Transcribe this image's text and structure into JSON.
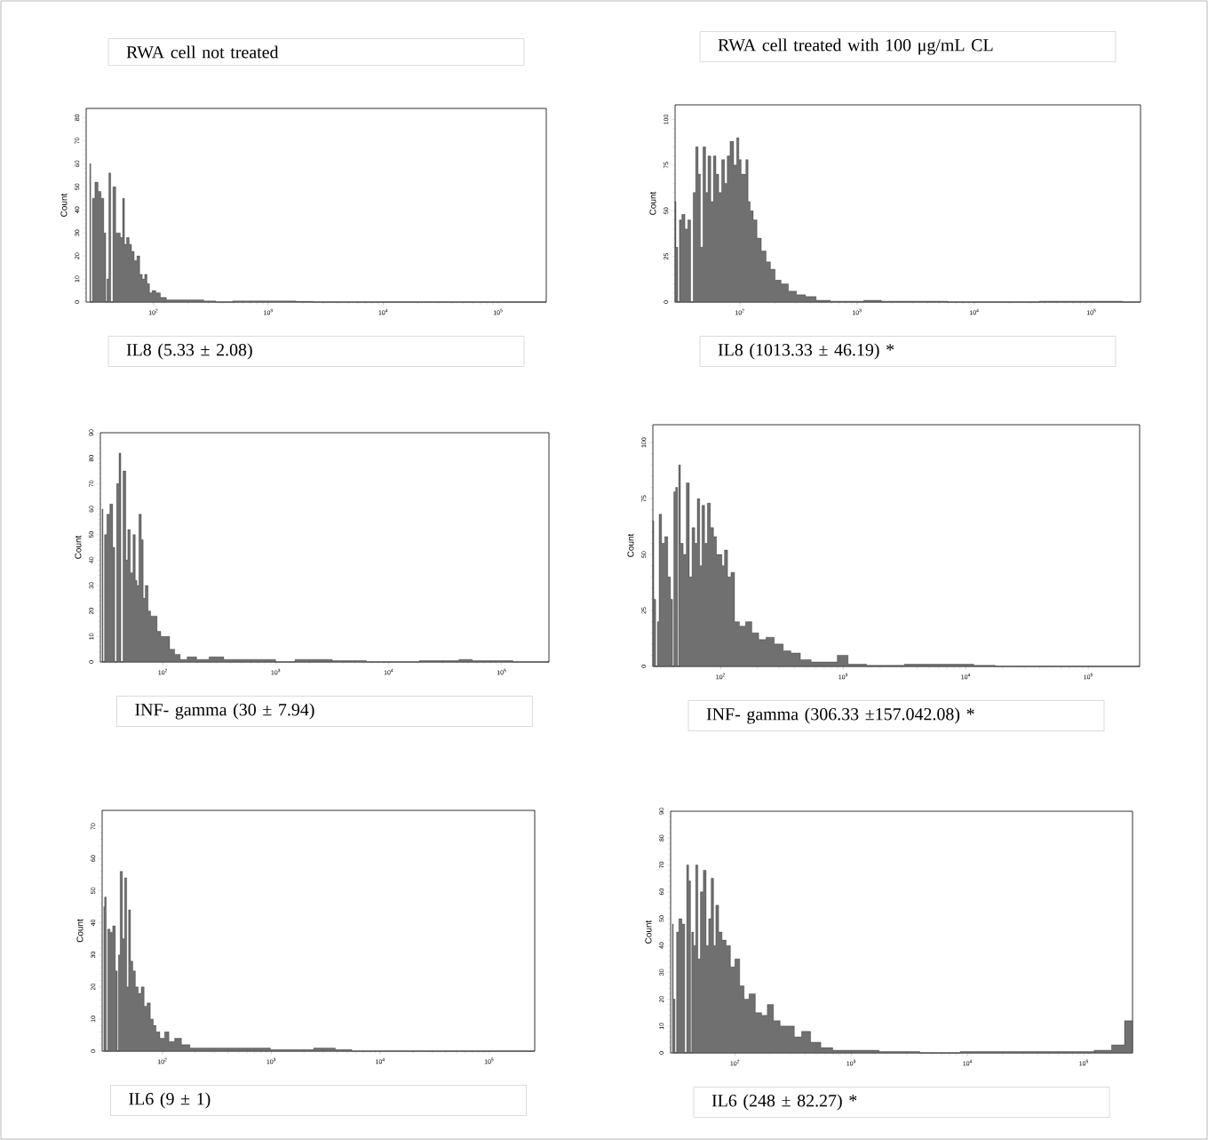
{
  "chart_data": [
    {
      "type": "area",
      "title": "RWA cell not treated",
      "xlabel": "IL8 (5.33 ± 2.08)",
      "ylabel": "Count",
      "log": "x",
      "color": "#707070",
      "x": [
        28,
        29,
        30,
        32,
        34,
        36,
        38,
        39,
        40,
        42,
        43,
        44,
        46,
        48,
        50,
        53,
        55,
        57,
        60,
        63,
        66,
        70,
        74,
        78,
        82,
        86,
        90,
        95,
        100,
        110,
        120,
        140,
        180,
        250,
        300,
        400,
        600,
        1000,
        1500,
        2000,
        3000,
        262144
      ],
      "values": [
        60,
        0,
        45,
        52,
        48,
        45,
        30,
        0,
        10,
        56,
        0,
        null,
        50,
        30,
        30,
        28,
        45,
        25,
        28,
        25,
        22,
        18,
        20,
        12,
        10,
        12,
        8,
        4,
        5,
        4,
        2,
        1,
        1,
        1,
        0.5,
        0,
        0.5,
        0.5,
        0.5,
        0.3,
        0,
        0
      ],
      "xlim": [
        26,
        262144
      ],
      "ylim": [
        0,
        84
      ],
      "xticks": [
        {
          "value": 100,
          "label": "10$^{2}$"
        },
        {
          "value": 1000,
          "label": "10$^{3}$"
        },
        {
          "value": 10000,
          "label": "10$^{4}$"
        },
        {
          "value": 100000,
          "label": "10$^{5}$"
        }
      ],
      "yticks": [
        0,
        10,
        20,
        30,
        40,
        50,
        60,
        70,
        80
      ]
    },
    {
      "type": "area",
      "title": "RWA cell treated with 100 μg/mL CL",
      "xlabel": "IL8 (1013.33 ± 46.19) *",
      "ylabel": "Count",
      "log": "x",
      "color": "#707070",
      "x": [
        28,
        29,
        30,
        31,
        33,
        35,
        37,
        39,
        41,
        43,
        45,
        47,
        50,
        52,
        55,
        58,
        61,
        64,
        68,
        72,
        76,
        80,
        85,
        88,
        92,
        96,
        100,
        105,
        110,
        115,
        120,
        125,
        135,
        145,
        160,
        175,
        190,
        210,
        240,
        280,
        330,
        400,
        500,
        700,
        1000,
        1300,
        2000,
        3500,
        10000,
        130000,
        262144
      ],
      "values": [
        55,
        30,
        0,
        45,
        48,
        40,
        45,
        0,
        60,
        85,
        70,
        30,
        85,
        60,
        80,
        55,
        80,
        70,
        60,
        78,
        65,
        80,
        88,
        null,
        75,
        90,
        78,
        70,
        70,
        78,
        55,
        50,
        45,
        35,
        28,
        22,
        18,
        12,
        10,
        6,
        4,
        3,
        1,
        0.5,
        0.5,
        1,
        0.5,
        0.5,
        0,
        0.5,
        0
      ],
      "xlim": [
        28,
        262144
      ],
      "ylim": [
        0,
        108
      ],
      "xticks": [
        {
          "value": 100,
          "label": "10$^{2}$"
        },
        {
          "value": 1000,
          "label": "10$^{3}$"
        },
        {
          "value": 10000,
          "label": "10$^{4}$"
        },
        {
          "value": 100000,
          "label": "10$^{5}$"
        }
      ],
      "yticks": [
        0,
        25,
        50,
        75,
        100
      ]
    },
    {
      "type": "area",
      "xlabel": "INF- gamma (30 ± 7.94)",
      "ylabel": "Count",
      "log": "x",
      "color": "#707070",
      "x": [
        29,
        30,
        31,
        33,
        35,
        37,
        38,
        40,
        42,
        43,
        44,
        46,
        48,
        50,
        53,
        56,
        58,
        60,
        63,
        66,
        68,
        72,
        76,
        80,
        86,
        92,
        100,
        110,
        120,
        135,
        150,
        180,
        220,
        300,
        400,
        500,
        700,
        900,
        1100,
        2000,
        2500,
        4000,
        10000,
        35000,
        50000,
        60000,
        262144
      ],
      "values": [
        60,
        0,
        50,
        58,
        62,
        45,
        0,
        70,
        82,
        0,
        null,
        75,
        40,
        52,
        35,
        50,
        32,
        30,
        58,
        48,
        25,
        30,
        20,
        18,
        18,
        12,
        10,
        10,
        5,
        3,
        1,
        2,
        1,
        2,
        1,
        1,
        1,
        1,
        0,
        1,
        1,
        0.5,
        0,
        0.5,
        1,
        0.5,
        0
      ],
      "xlim": [
        28,
        262144
      ],
      "ylim": [
        0,
        90
      ],
      "xticks": [
        {
          "value": 100,
          "label": "10$^{2}$"
        },
        {
          "value": 1000,
          "label": "10$^{3}$"
        },
        {
          "value": 10000,
          "label": "10$^{4}$"
        },
        {
          "value": 100000,
          "label": "10$^{5}$"
        }
      ],
      "yticks": [
        0,
        10,
        20,
        30,
        40,
        50,
        60,
        70,
        80,
        90
      ]
    },
    {
      "type": "area",
      "xlabel": "INF- gamma (306.33 ±157.042.08) *",
      "ylabel": "Count",
      "log": "x",
      "color": "#707070",
      "x": [
        28,
        29,
        30,
        31,
        32,
        34,
        36,
        38,
        40,
        41,
        42,
        43,
        44,
        45,
        46,
        48,
        51,
        54,
        57,
        60,
        63,
        66,
        69,
        72,
        76,
        80,
        85,
        90,
        95,
        100,
        105,
        110,
        118,
        125,
        135,
        150,
        170,
        190,
        220,
        250,
        300,
        350,
        400,
        500,
        600,
        800,
        1000,
        1200,
        2000,
        5000,
        9000,
        15000,
        20000,
        262144
      ],
      "values": [
        65,
        30,
        0,
        20,
        68,
        55,
        58,
        40,
        30,
        0,
        78,
        null,
        80,
        0,
        90,
        55,
        50,
        82,
        40,
        62,
        55,
        75,
        45,
        72,
        55,
        73,
        62,
        58,
        50,
        50,
        45,
        52,
        40,
        42,
        20,
        18,
        20,
        15,
        12,
        13,
        10,
        7,
        6,
        3,
        2,
        2,
        5,
        1,
        0.5,
        1,
        1,
        0.5,
        0,
        0
      ],
      "xlim": [
        28,
        262144
      ],
      "ylim": [
        0,
        108
      ],
      "xticks": [
        {
          "value": 100,
          "label": "10$^{2}$"
        },
        {
          "value": 1000,
          "label": "10$^{3}$"
        },
        {
          "value": 10000,
          "label": "10$^{4}$"
        },
        {
          "value": 100000,
          "label": "10$^{5}$"
        }
      ],
      "yticks": [
        0,
        25,
        50,
        75,
        100
      ]
    },
    {
      "type": "area",
      "xlabel": "IL6 (9 ± 1)",
      "ylabel": "Count",
      "log": "x",
      "color": "#707070",
      "x": [
        29,
        30,
        31,
        32,
        34,
        36,
        38,
        39,
        40,
        41,
        42,
        44,
        46,
        48,
        50,
        52,
        55,
        58,
        62,
        66,
        70,
        75,
        80,
        85,
        90,
        100,
        110,
        120,
        140,
        160,
        200,
        300,
        500,
        800,
        1200,
        2000,
        3000,
        5000,
        6000,
        262144
      ],
      "values": [
        45,
        48,
        0,
        38,
        37,
        39,
        25,
        0,
        30,
        null,
        56,
        35,
        54,
        20,
        44,
        28,
        25,
        20,
        18,
        20,
        14,
        15,
        10,
        8,
        6,
        4,
        6,
        3,
        4,
        2,
        1,
        1,
        1,
        1,
        0.5,
        0.5,
        1,
        0.5,
        0,
        0
      ],
      "xlim": [
        28,
        262144
      ],
      "ylim": [
        0,
        75
      ],
      "xticks": [
        {
          "value": 100,
          "label": "10$^{2}$"
        },
        {
          "value": 1000,
          "label": "10$^{3}$"
        },
        {
          "value": 10000,
          "label": "10$^{4}$"
        },
        {
          "value": 100000,
          "label": "10$^{5}$"
        }
      ],
      "yticks": [
        0,
        10,
        20,
        30,
        40,
        50,
        60,
        70
      ]
    },
    {
      "type": "area",
      "xlabel": "IL6 (248 ± 82.27) *",
      "ylabel": "Count",
      "log": "x",
      "color": "#707070",
      "x": [
        29,
        30,
        31,
        32,
        34,
        36,
        38,
        39,
        40,
        41,
        42,
        43,
        45,
        47,
        49,
        52,
        55,
        58,
        61,
        64,
        67,
        70,
        75,
        80,
        88,
        95,
        105,
        115,
        125,
        140,
        160,
        180,
        200,
        230,
        260,
        300,
        350,
        400,
        500,
        600,
        800,
        1000,
        1500,
        2000,
        3000,
        5000,
        15000,
        30000,
        100000,
        150000,
        200000,
        250000,
        262144
      ],
      "values": [
        48,
        20,
        0,
        45,
        50,
        48,
        0,
        70,
        null,
        64,
        0,
        45,
        40,
        70,
        35,
        60,
        68,
        40,
        50,
        65,
        40,
        55,
        45,
        42,
        40,
        32,
        35,
        25,
        20,
        22,
        15,
        14,
        18,
        12,
        10,
        10,
        6,
        8,
        4,
        2,
        1,
        1,
        1,
        0.5,
        0.5,
        0,
        0.5,
        0.5,
        0.5,
        1,
        3,
        12,
        12
      ],
      "xlim": [
        28,
        262144
      ],
      "ylim": [
        0,
        90
      ],
      "xticks": [
        {
          "value": 100,
          "label": "10$^{2}$"
        },
        {
          "value": 1000,
          "label": "10$^{3}$"
        },
        {
          "value": 10000,
          "label": "10$^{4}$"
        },
        {
          "value": 100000,
          "label": "10$^{5}$"
        }
      ],
      "yticks": [
        0,
        10,
        20,
        30,
        40,
        50,
        60,
        70,
        80,
        90
      ]
    }
  ]
}
